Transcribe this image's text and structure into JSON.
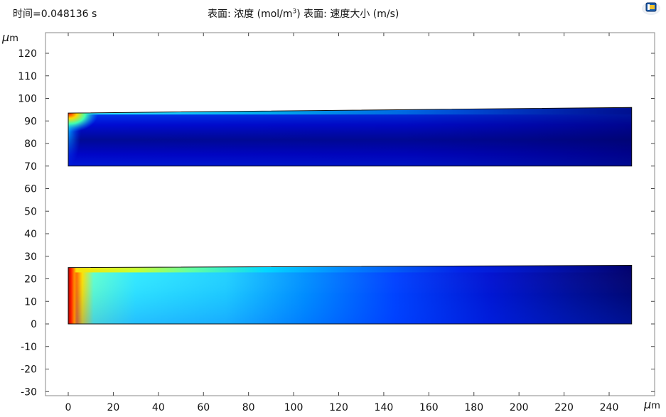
{
  "header": {
    "time_label": "时间=0.048136 s",
    "title_prefix": "表面: 浓度 (mol/m",
    "title_sup": "3",
    "title_suffix": ")  表面: 速度大小 (m/s)"
  },
  "toolbar": {
    "app_icon": "comsol-plot-icon"
  },
  "chart_data": {
    "type": "heatmap",
    "title": "表面: 浓度 (mol/m3)  表面: 速度大小 (m/s)",
    "subtitle": "时间=0.048136 s",
    "xlabel": "μm",
    "ylabel": "μm",
    "xlim": [
      -4,
      260
    ],
    "ylim": [
      -32,
      128
    ],
    "x_ticks": [
      0,
      20,
      40,
      60,
      80,
      100,
      120,
      140,
      160,
      180,
      200,
      220,
      240
    ],
    "y_ticks": [
      -30,
      -20,
      -10,
      0,
      10,
      20,
      30,
      40,
      50,
      60,
      70,
      80,
      90,
      100,
      110,
      120
    ],
    "x_unit_prefix": "μ",
    "x_unit_suffix": "m",
    "y_unit_prefix": "μ",
    "y_unit_suffix": "m",
    "grid": false,
    "colormap": "rainbow (jet)",
    "domains": [
      {
        "name": "upper-channel",
        "x_range": [
          0,
          250
        ],
        "y_bottom": 70,
        "y_top_left": 93.5,
        "y_top_right": 96,
        "field": "速度大小",
        "high_value_region": "top-left corner near x=0-15, y=92-93"
      },
      {
        "name": "lower-channel",
        "x_range": [
          0,
          250
        ],
        "y_bottom": 0,
        "y_top_left": 25,
        "y_top_right": 26,
        "field": "浓度",
        "high_value_region": "left wall near x=0-5, y=0-23"
      }
    ]
  }
}
